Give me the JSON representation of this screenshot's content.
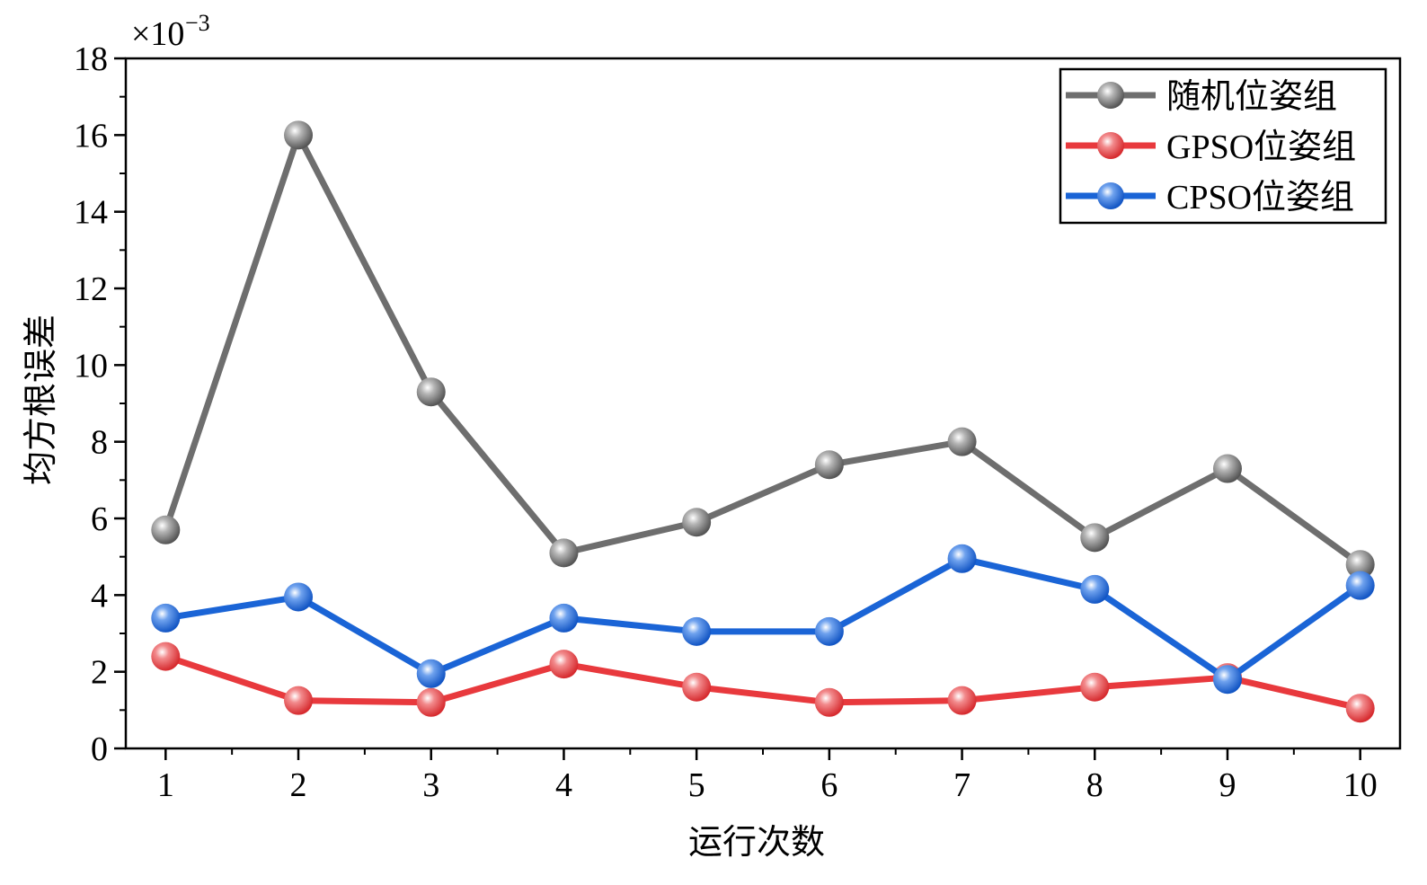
{
  "chart_data": {
    "type": "line",
    "xlabel": "运行次数",
    "ylabel": "均方根误差",
    "y_multiplier_base": "×10",
    "y_multiplier_exp": "−3",
    "x": [
      1,
      2,
      3,
      4,
      5,
      6,
      7,
      8,
      9,
      10
    ],
    "x_tick_labels": [
      "1",
      "2",
      "3",
      "4",
      "5",
      "6",
      "7",
      "8",
      "9",
      "10"
    ],
    "xlim": [
      0.7,
      10.3
    ],
    "ylim": [
      0,
      18
    ],
    "y_ticks": [
      0,
      2,
      4,
      6,
      8,
      10,
      12,
      14,
      16,
      18
    ],
    "y_tick_labels": [
      "0",
      "2",
      "4",
      "6",
      "8",
      "10",
      "12",
      "14",
      "16",
      "18"
    ],
    "legend_position": "top-right",
    "grid": false,
    "series": [
      {
        "name": "随机位姿组",
        "color": "#6e6e6e",
        "values": [
          5.7,
          16.0,
          9.3,
          5.1,
          5.9,
          7.4,
          8.0,
          5.5,
          7.3,
          4.8
        ]
      },
      {
        "name": "GPSO位姿组",
        "color": "#e8393d",
        "values": [
          2.4,
          1.25,
          1.2,
          2.2,
          1.6,
          1.2,
          1.25,
          1.6,
          1.85,
          1.05
        ]
      },
      {
        "name": "CPSO位姿组",
        "color": "#1a64d6",
        "values": [
          3.4,
          3.95,
          1.95,
          3.4,
          3.05,
          3.05,
          4.95,
          4.15,
          1.8,
          4.25
        ]
      }
    ]
  }
}
